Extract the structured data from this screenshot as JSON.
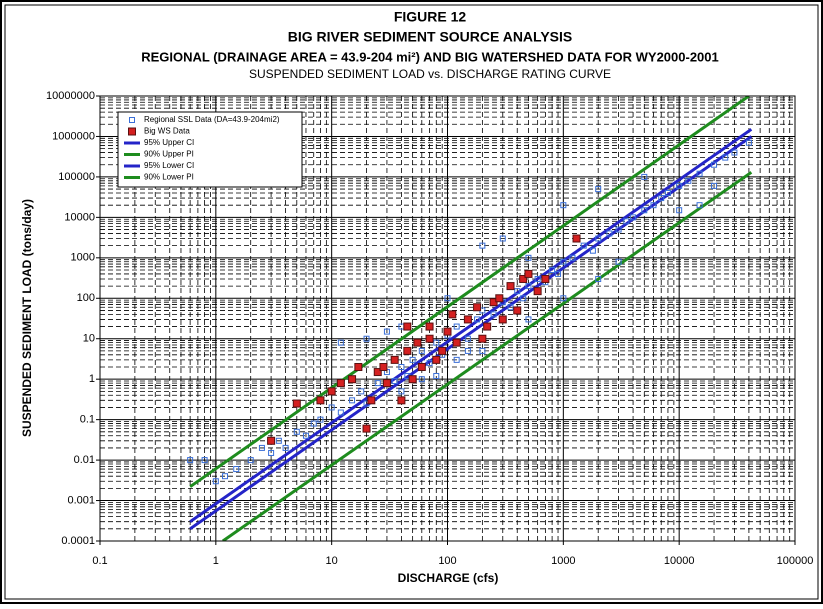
{
  "chart_data": {
    "type": "scatter",
    "figure_label": "FIGURE 12",
    "title": "BIG RIVER SEDIMENT SOURCE ANALYSIS",
    "subtitle": "REGIONAL (DRAINAGE AREA = 43.9-204 mi²) AND BIG WATERSHED DATA FOR WY2000-2001",
    "subtitle2": "SUSPENDED SEDIMENT LOAD vs. DISCHARGE RATING CURVE",
    "xlabel": "DISCHARGE (cfs)",
    "ylabel": "SUSPENDED SEDIMENT LOAD  (tons/day)",
    "xscale": "log",
    "yscale": "log",
    "xlim": [
      0.1,
      100000
    ],
    "ylim": [
      0.0001,
      10000000
    ],
    "xticks": [
      0.1,
      1,
      10,
      100,
      1000,
      10000,
      100000
    ],
    "yticks": [
      0.0001,
      0.001,
      0.01,
      0.1,
      1,
      10,
      100,
      1000,
      10000,
      100000,
      1000000,
      10000000
    ],
    "grid": true,
    "minor_grid": true,
    "legend": "upper left",
    "series": [
      {
        "name": "Regional SSL Data (DA=43.9-204mi2)",
        "color": "#3a6fd8",
        "kind": "open-square",
        "x": [
          0.6,
          0.8,
          1,
          1.2,
          1.5,
          2,
          2.5,
          3,
          3.5,
          4,
          5,
          6,
          7,
          8,
          10,
          12,
          15,
          18,
          20,
          25,
          30,
          35,
          40,
          45,
          50,
          60,
          70,
          80,
          90,
          100,
          120,
          150,
          180,
          200,
          250,
          300,
          350,
          400,
          450,
          500,
          600,
          700,
          800,
          900,
          1000,
          1200,
          1500,
          1800,
          2000,
          2500,
          3000,
          3500,
          4000,
          5000,
          6000,
          7000,
          8000,
          10000,
          12000,
          15000,
          20000,
          25000,
          30000,
          40000,
          12,
          20,
          40,
          30,
          100,
          200,
          300,
          500,
          1000,
          2000,
          5000,
          200,
          500,
          1000,
          2000,
          3000,
          10000,
          15000,
          20000,
          40,
          60,
          80,
          120,
          150
        ],
        "values": [
          0.01,
          0.01,
          0.003,
          0.004,
          0.006,
          0.01,
          0.02,
          0.015,
          0.03,
          0.02,
          0.05,
          0.04,
          0.08,
          0.1,
          0.2,
          0.15,
          0.3,
          0.5,
          0.25,
          0.8,
          1.5,
          0.9,
          2,
          1.2,
          3,
          5,
          2.5,
          8,
          4,
          12,
          20,
          10,
          30,
          50,
          40,
          80,
          60,
          150,
          100,
          200,
          300,
          250,
          500,
          400,
          800,
          1000,
          2000,
          1500,
          3000,
          4000,
          5000,
          8000,
          10000,
          15000,
          20000,
          30000,
          40000,
          60000,
          80000,
          120000,
          200000,
          300000,
          400000,
          700000,
          8,
          10,
          20,
          15,
          100,
          2000,
          3000,
          1000,
          20000,
          50000,
          100000,
          5,
          30,
          100,
          300,
          800,
          15000,
          20000,
          60000,
          0.5,
          1,
          1.2,
          3,
          5
        ]
      },
      {
        "name": "Big WS Data",
        "color": "#d42020",
        "kind": "filled-square",
        "x": [
          3,
          5,
          8,
          10,
          12,
          15,
          17,
          20,
          22,
          25,
          28,
          30,
          35,
          40,
          45,
          45,
          50,
          55,
          60,
          70,
          70,
          80,
          90,
          100,
          110,
          120,
          150,
          180,
          200,
          220,
          250,
          280,
          300,
          350,
          400,
          450,
          500,
          600,
          700,
          1300
        ],
        "values": [
          0.03,
          0.25,
          0.3,
          0.5,
          0.8,
          1,
          2,
          0.06,
          0.3,
          1.5,
          2,
          0.8,
          3,
          0.3,
          5,
          20,
          1,
          8,
          2,
          10,
          20,
          3,
          5,
          15,
          40,
          8,
          30,
          60,
          10,
          20,
          80,
          100,
          30,
          200,
          50,
          300,
          400,
          150,
          300,
          3000
        ]
      },
      {
        "name": "95% Upper CI",
        "color": "#2424c8",
        "kind": "line",
        "x": [
          0.6,
          42000
        ],
        "values": [
          0.0003,
          1500000
        ]
      },
      {
        "name": "90% Upper PI",
        "color": "#1e8c1e",
        "kind": "line",
        "x": [
          0.6,
          40000
        ],
        "values": [
          0.0022,
          10000000
        ]
      },
      {
        "name": "95% Lower CI",
        "color": "#2424c8",
        "kind": "line",
        "x": [
          0.6,
          42000
        ],
        "values": [
          0.0002,
          1000000
        ]
      },
      {
        "name": "90% Lower PI",
        "color": "#1e8c1e",
        "kind": "line",
        "x": [
          1.15,
          42000
        ],
        "values": [
          0.0001,
          130000
        ]
      }
    ]
  }
}
